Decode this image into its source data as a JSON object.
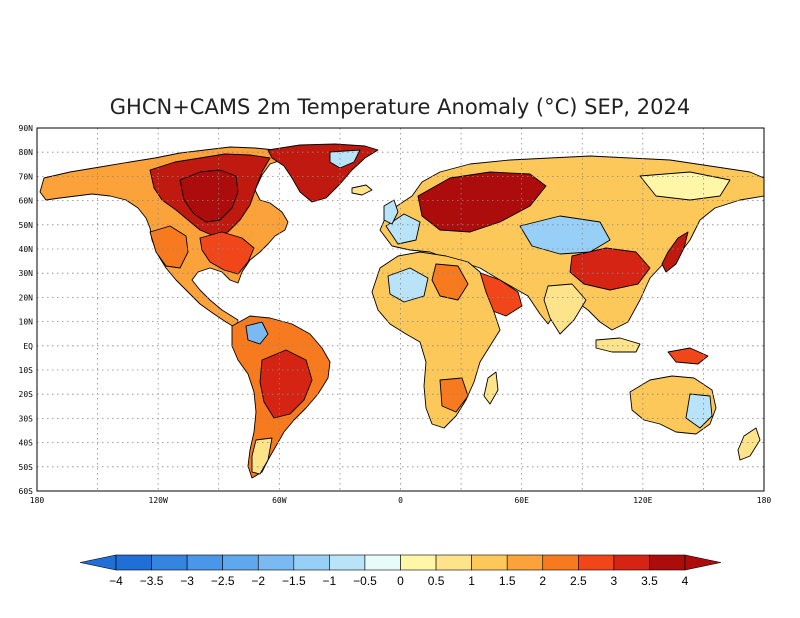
{
  "title": "GHCN+CAMS 2m Temperature Anomaly (°C) SEP, 2024",
  "lat_labels": [
    "90N",
    "80N",
    "70N",
    "60N",
    "50N",
    "40N",
    "30N",
    "20N",
    "10N",
    "EQ",
    "10S",
    "20S",
    "30S",
    "40S",
    "50S",
    "60S"
  ],
  "lon_labels": [
    "180",
    "120W",
    "60W",
    "0",
    "60E",
    "120E",
    "180"
  ],
  "colorbar": {
    "labels": [
      "-4",
      "-3.5",
      "-3",
      "-2.5",
      "-2",
      "-1.5",
      "-1",
      "-0.5",
      "0",
      "0.5",
      "1",
      "1.5",
      "2",
      "2.5",
      "3",
      "3.5",
      "4"
    ],
    "colors": [
      "#1f6fd6",
      "#3484e0",
      "#4a96e8",
      "#5fa8ee",
      "#7ab9f2",
      "#98cff6",
      "#b8e3f8",
      "#e8fbfb",
      "#fff6a8",
      "#fde48a",
      "#fdc85a",
      "#fba23a",
      "#f77a1e",
      "#f0461a",
      "#d52414",
      "#ad0c0c"
    ],
    "under_color": "#1f6fd6",
    "over_color": "#ad0c0c"
  },
  "chart_data": {
    "type": "heatmap",
    "title": "GHCN+CAMS 2m Temperature Anomaly (°C) SEP, 2024",
    "x_ticks": [
      "180",
      "120W",
      "60W",
      "0",
      "60E",
      "120E",
      "180"
    ],
    "y_ticks": [
      "90N",
      "80N",
      "70N",
      "60N",
      "50N",
      "40N",
      "30N",
      "20N",
      "10N",
      "EQ",
      "10S",
      "20S",
      "30S",
      "40S",
      "50S",
      "60S"
    ],
    "xlim": [
      -180,
      180
    ],
    "ylim": [
      -60,
      90
    ],
    "color_scale": [
      -4,
      4
    ],
    "grid": true,
    "regions": [
      {
        "id": "n-america-west",
        "lon": -115,
        "lat": 50,
        "anomaly": 2.5
      },
      {
        "id": "canada-central",
        "lon": -95,
        "lat": 55,
        "anomaly": 4
      },
      {
        "id": "usa-east",
        "lon": -80,
        "lat": 38,
        "anomaly": 2.5
      },
      {
        "id": "alaska",
        "lon": -150,
        "lat": 64,
        "anomaly": 1.5
      },
      {
        "id": "greenland",
        "lon": -40,
        "lat": 75,
        "anomaly": 3
      },
      {
        "id": "mexico",
        "lon": -102,
        "lat": 22,
        "anomaly": 1.5
      },
      {
        "id": "amazon",
        "lon": -60,
        "lat": -8,
        "anomaly": 2.5
      },
      {
        "id": "brazil-south",
        "lon": -52,
        "lat": -22,
        "anomaly": 3
      },
      {
        "id": "patagonia",
        "lon": -68,
        "lat": -45,
        "anomaly": 1
      },
      {
        "id": "colombia",
        "lon": -74,
        "lat": 3,
        "anomaly": -1
      },
      {
        "id": "europe-west",
        "lon": -2,
        "lat": 45,
        "anomaly": -0.5
      },
      {
        "id": "eastern-europe",
        "lon": 35,
        "lat": 55,
        "anomaly": 4
      },
      {
        "id": "siberia-west",
        "lon": 75,
        "lat": 62,
        "anomaly": 2
      },
      {
        "id": "central-asia",
        "lon": 80,
        "lat": 45,
        "anomaly": -1
      },
      {
        "id": "siberia-east",
        "lon": 130,
        "lat": 65,
        "anomaly": 0.5
      },
      {
        "id": "sahara",
        "lon": 10,
        "lat": 22,
        "anomaly": -0.5
      },
      {
        "id": "egypt-sudan",
        "lon": 30,
        "lat": 20,
        "anomaly": 2
      },
      {
        "id": "arabia",
        "lon": 45,
        "lat": 22,
        "anomaly": 2.5
      },
      {
        "id": "india",
        "lon": 78,
        "lat": 22,
        "anomaly": 1
      },
      {
        "id": "china",
        "lon": 105,
        "lat": 32,
        "anomaly": 3.5
      },
      {
        "id": "japan",
        "lon": 138,
        "lat": 36,
        "anomaly": 4
      },
      {
        "id": "africa-central",
        "lon": 22,
        "lat": 0,
        "anomaly": 1
      },
      {
        "id": "africa-south",
        "lon": 25,
        "lat": -22,
        "anomaly": 1.5
      },
      {
        "id": "australia-west",
        "lon": 122,
        "lat": -25,
        "anomaly": 1.5
      },
      {
        "id": "australia-east",
        "lon": 145,
        "lat": -30,
        "anomaly": -0.5
      },
      {
        "id": "new-guinea",
        "lon": 143,
        "lat": -5,
        "anomaly": 3
      },
      {
        "id": "new-zealand",
        "lon": 173,
        "lat": -42,
        "anomaly": 1
      }
    ]
  }
}
